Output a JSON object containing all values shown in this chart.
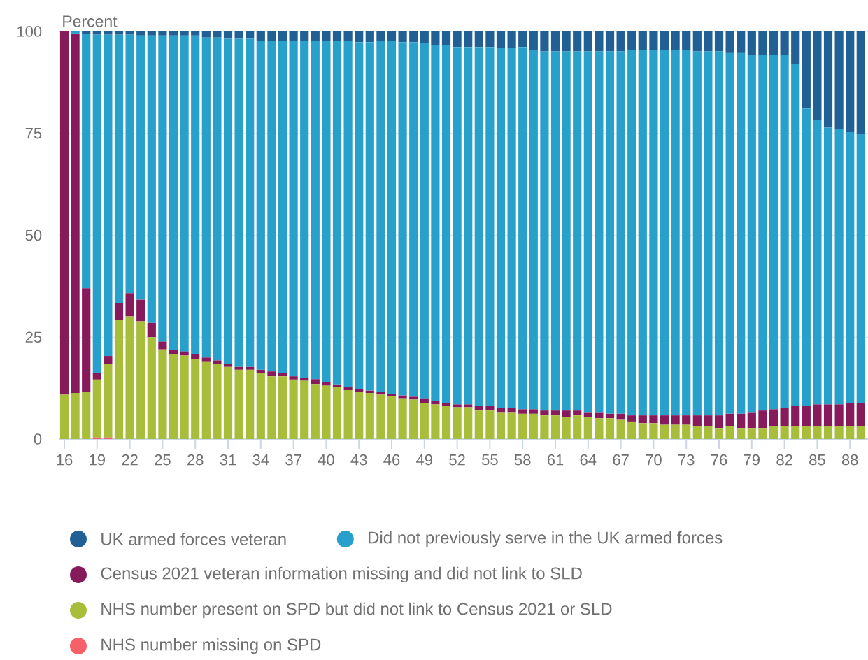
{
  "chart_data": {
    "type": "bar",
    "stacked": true,
    "ylabel": "Percent",
    "categories": [
      "16",
      null,
      null,
      "19",
      null,
      null,
      "22",
      null,
      null,
      "25",
      null,
      null,
      "28",
      null,
      null,
      "31",
      null,
      null,
      "34",
      null,
      null,
      "37",
      null,
      null,
      "40",
      null,
      null,
      "43",
      null,
      null,
      "46",
      null,
      null,
      "49",
      null,
      null,
      "52",
      null,
      null,
      "55",
      null,
      null,
      "58",
      null,
      null,
      "61",
      null,
      null,
      "64",
      null,
      null,
      "67",
      null,
      null,
      "70",
      null,
      null,
      "73",
      null,
      null,
      "76",
      null,
      null,
      "79",
      null,
      null,
      "82",
      null,
      null,
      "85",
      null,
      null,
      "88",
      null
    ],
    "ylim": [
      0,
      100
    ],
    "yticks": [
      0,
      25,
      50,
      75,
      100
    ],
    "grid": "y",
    "legend": "bottom",
    "series": [
      {
        "name": "NHS number missing on SPD",
        "color": "#f66068",
        "values": [
          0,
          0,
          0,
          0.4,
          0.4,
          0,
          0,
          0,
          0,
          0,
          0,
          0,
          0,
          0,
          0,
          0,
          0,
          0,
          0,
          0,
          0,
          0,
          0,
          0,
          0,
          0,
          0,
          0,
          0,
          0,
          0,
          0,
          0,
          0,
          0,
          0,
          0,
          0,
          0,
          0,
          0,
          0,
          0,
          0,
          0,
          0,
          0,
          0,
          0,
          0,
          0,
          0,
          0,
          0,
          0,
          0,
          0,
          0,
          0,
          0,
          0,
          0,
          0,
          0,
          0,
          0,
          0,
          0,
          0,
          0,
          0,
          0,
          0,
          0
        ]
      },
      {
        "name": "NHS number present on SPD but did not link to Census 2021 or SLD",
        "color": "#a8bd3a",
        "values": [
          10.9,
          11.3,
          11.6,
          14.2,
          18.1,
          29.3,
          30.1,
          28.9,
          25.0,
          22.0,
          20.8,
          20.5,
          19.7,
          18.9,
          18.5,
          17.7,
          17.0,
          17.0,
          16.2,
          15.4,
          15.4,
          14.6,
          14.3,
          13.5,
          13.1,
          12.7,
          12.0,
          11.5,
          11.3,
          10.9,
          10.5,
          10.0,
          9.7,
          8.9,
          8.5,
          8.2,
          7.8,
          7.8,
          7.0,
          7.0,
          6.6,
          6.6,
          6.2,
          6.2,
          5.8,
          5.8,
          5.4,
          5.8,
          5.4,
          5.1,
          5.1,
          4.7,
          4.3,
          3.9,
          3.9,
          3.5,
          3.5,
          3.5,
          3.1,
          3.1,
          2.7,
          3.1,
          2.7,
          2.7,
          2.7,
          3.1,
          3.1,
          3.1,
          3.1,
          3.1,
          3.1,
          3.1,
          3.1,
          3.1
        ]
      },
      {
        "name": "Census 2021 veteran information missing and did not link to SLD",
        "color": "#871a5b",
        "values": [
          89.1,
          88.2,
          25.4,
          1.6,
          1.9,
          4.1,
          5.7,
          5.3,
          3.5,
          1.9,
          1.1,
          1.0,
          1.1,
          1.1,
          0.8,
          0.8,
          0.7,
          0.7,
          0.8,
          1.2,
          0.8,
          0.8,
          0.7,
          1.2,
          0.8,
          0.7,
          0.7,
          0.8,
          0.6,
          0.6,
          0.6,
          0.7,
          0.7,
          1.1,
          0.8,
          0.7,
          0.7,
          0.7,
          1.1,
          1.1,
          1.1,
          1.1,
          1.1,
          1.1,
          1.2,
          1.2,
          1.6,
          1.2,
          1.2,
          1.5,
          1.1,
          1.5,
          1.5,
          1.9,
          1.9,
          2.3,
          2.3,
          2.3,
          2.7,
          2.7,
          3.1,
          3.1,
          3.5,
          3.9,
          4.3,
          4.2,
          4.6,
          5.0,
          5.0,
          5.4,
          5.4,
          5.4,
          5.8,
          5.8
        ]
      },
      {
        "name": "Did not previously serve in the UK armed forces",
        "color": "#27a0cc",
        "values": [
          0,
          0.5,
          62.3,
          83.0,
          78.8,
          65.8,
          63.4,
          64.8,
          70.5,
          75.1,
          77.1,
          77.5,
          78.2,
          78.5,
          79.2,
          79.7,
          80.5,
          80.5,
          80.7,
          81.1,
          81.5,
          82.3,
          82.7,
          83.0,
          83.8,
          84.3,
          85.0,
          85.1,
          85.5,
          86.2,
          86.6,
          86.7,
          87.0,
          87.1,
          87.4,
          87.8,
          87.7,
          87.7,
          88.1,
          88.1,
          88.2,
          88.2,
          88.9,
          88.2,
          88.1,
          88.1,
          88.1,
          88.1,
          88.5,
          88.5,
          88.9,
          88.9,
          89.7,
          89.7,
          89.7,
          89.7,
          89.7,
          89.7,
          89.3,
          89.3,
          89.3,
          88.5,
          88.5,
          87.7,
          87.3,
          87.0,
          86.6,
          83.9,
          73.0,
          69.9,
          67.9,
          67.5,
          66.4,
          66.0
        ]
      },
      {
        "name": "UK armed forces veteran",
        "color": "#206095",
        "values": [
          0,
          0,
          0.7,
          0.8,
          0.8,
          0.8,
          0.8,
          1.0,
          1.0,
          1.0,
          1.0,
          1.0,
          1.0,
          1.5,
          1.5,
          1.8,
          1.8,
          1.8,
          2.3,
          2.3,
          2.3,
          2.3,
          2.3,
          2.3,
          2.3,
          2.3,
          2.3,
          2.6,
          2.6,
          2.3,
          2.3,
          2.6,
          2.6,
          2.9,
          3.3,
          3.3,
          3.8,
          3.8,
          3.8,
          3.8,
          4.1,
          4.1,
          3.8,
          4.5,
          4.9,
          4.9,
          4.9,
          4.9,
          4.9,
          4.9,
          4.9,
          4.9,
          4.5,
          4.5,
          4.5,
          4.5,
          4.5,
          4.5,
          4.9,
          4.9,
          4.9,
          5.3,
          5.3,
          5.7,
          5.7,
          5.7,
          5.7,
          8.0,
          18.9,
          21.6,
          23.6,
          24.0,
          24.7,
          25.1
        ]
      }
    ]
  }
}
